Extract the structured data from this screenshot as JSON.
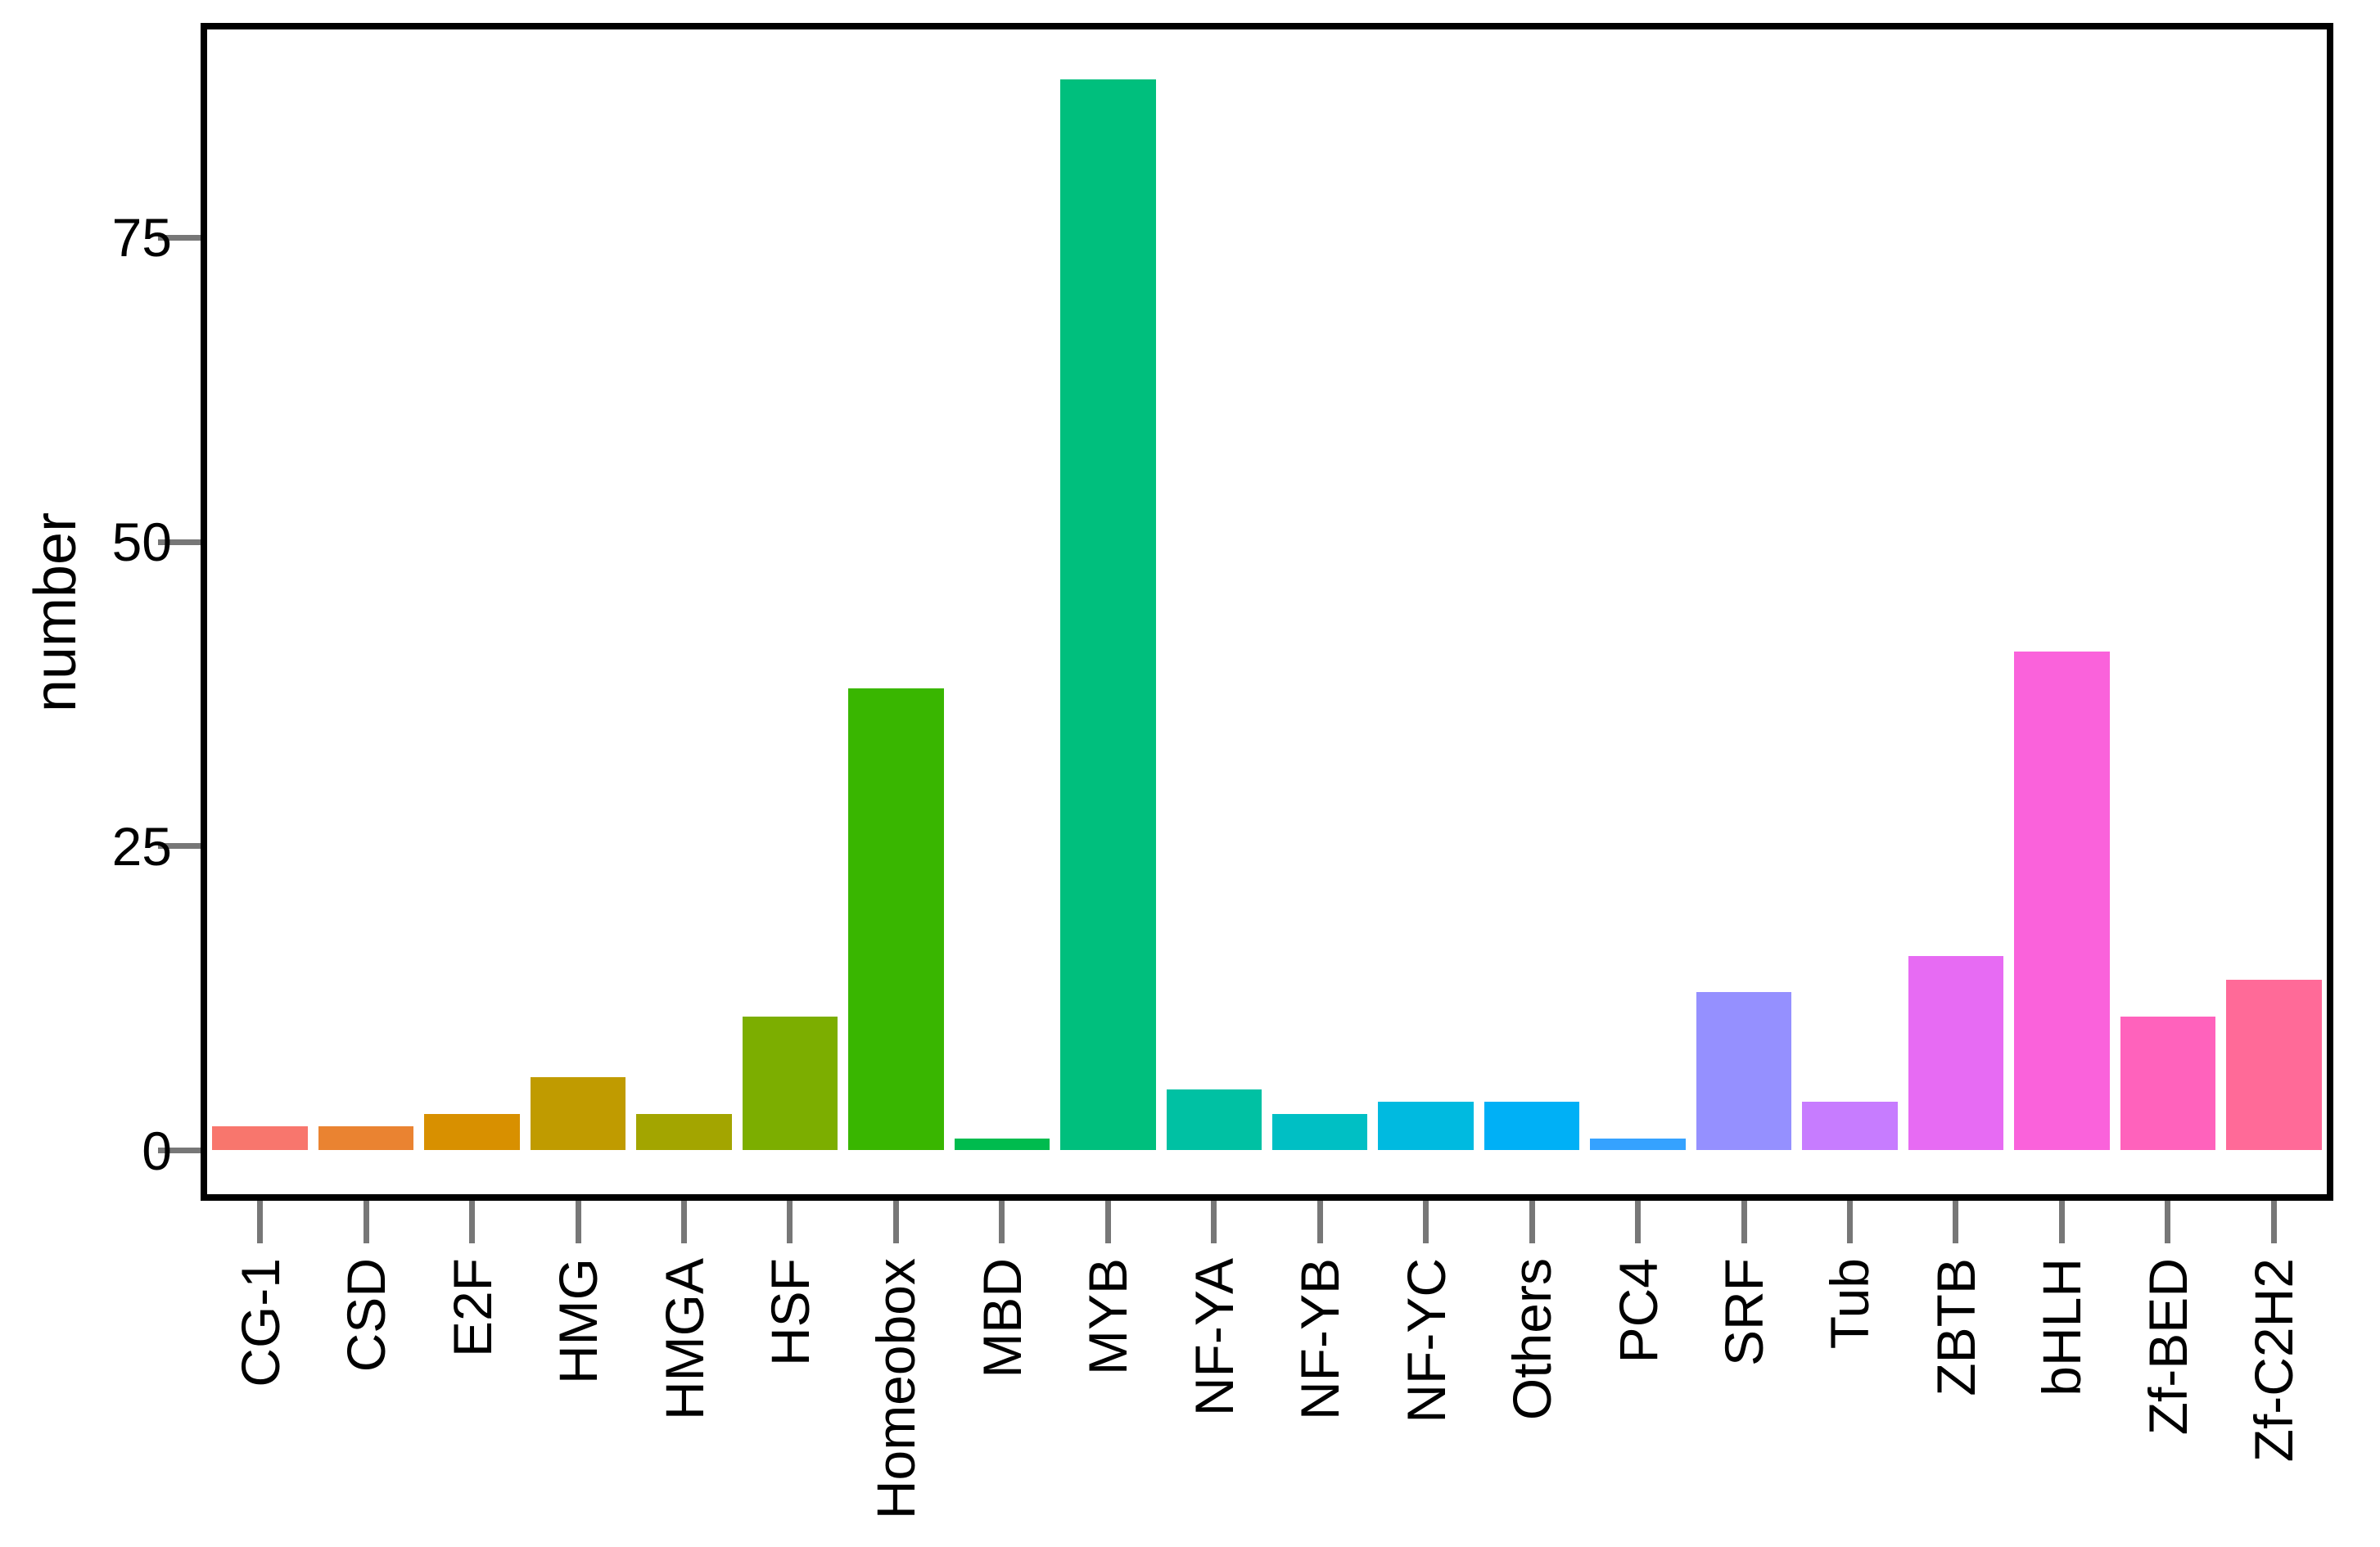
{
  "chart_data": {
    "type": "bar",
    "title": "",
    "xlabel": "",
    "ylabel": "number",
    "categories": [
      "CG-1",
      "CSD",
      "E2F",
      "HMG",
      "HMGA",
      "HSF",
      "Homeobox",
      "MBD",
      "MYB",
      "NF-YA",
      "NF-YB",
      "NF-YC",
      "Others",
      "PC4",
      "SRF",
      "Tub",
      "ZBTB",
      "bHLH",
      "Zf-BED",
      "Zf-C2H2"
    ],
    "values": [
      2,
      2,
      3,
      6,
      3,
      11,
      38,
      1,
      88,
      5,
      3,
      4,
      4,
      1,
      13,
      4,
      16,
      41,
      11,
      14
    ],
    "colors": [
      "#F8766D",
      "#EA8331",
      "#D89000",
      "#C09B00",
      "#A3A500",
      "#7CAE00",
      "#39B600",
      "#00BB4E",
      "#00BF7D",
      "#00C1A3",
      "#00BFC4",
      "#00BAE0",
      "#00B0F6",
      "#35A2FF",
      "#9590FF",
      "#C77CFF",
      "#E76BF3",
      "#FA62DB",
      "#FF62BC",
      "#FF6A98"
    ],
    "yticks": [
      0,
      25,
      50,
      75
    ],
    "ylim": [
      0,
      92.4
    ],
    "grid": false,
    "legend": "none",
    "x_tick_rotation_degrees": 90,
    "bar_relative_width": 0.9,
    "panel_border_color": "#000000",
    "tick_mark_color": "#777777",
    "text_color": "#000000"
  }
}
